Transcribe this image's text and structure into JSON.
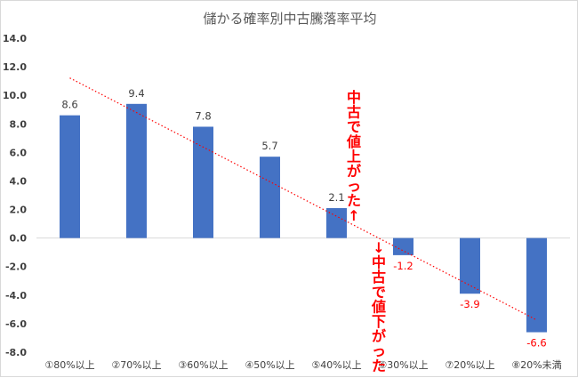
{
  "chart_data": {
    "type": "bar",
    "title": "儲かる確率別中古騰落率平均",
    "categories": [
      "①80%以上",
      "②70%以上",
      "③60%以上",
      "④50%以上",
      "⑤40%以上",
      "⑥30%以上",
      "⑦20%以上",
      "⑧20%未満"
    ],
    "series": [
      {
        "values": [
          8.6,
          9.4,
          7.8,
          5.7,
          2.1,
          -1.2,
          -3.9,
          -6.6
        ]
      }
    ],
    "data_labels": [
      "8.6",
      "9.4",
      "7.8",
      "5.7",
      "2.1",
      "-1.2",
      "-3.9",
      "-6.6"
    ],
    "ylim": [
      -8.0,
      14.0
    ],
    "y_ticks": [
      "14.0",
      "12.0",
      "10.0",
      "8.0",
      "6.0",
      "4.0",
      "2.0",
      "0.0",
      "-2.0",
      "-4.0",
      "-6.0",
      "-8.0"
    ],
    "xlabel": "",
    "ylabel": "",
    "grid": false,
    "legend": "none",
    "trendline": {
      "type": "linear",
      "style": "dotted",
      "color": "#ff0000"
    },
    "bar_color": "#4472c4",
    "positive_label_color": "#404040",
    "negative_label_color": "#ff0000",
    "annotations": [
      {
        "text": "中古で値上がった↑"
      },
      {
        "text": "↓中古で値下がった"
      }
    ]
  }
}
